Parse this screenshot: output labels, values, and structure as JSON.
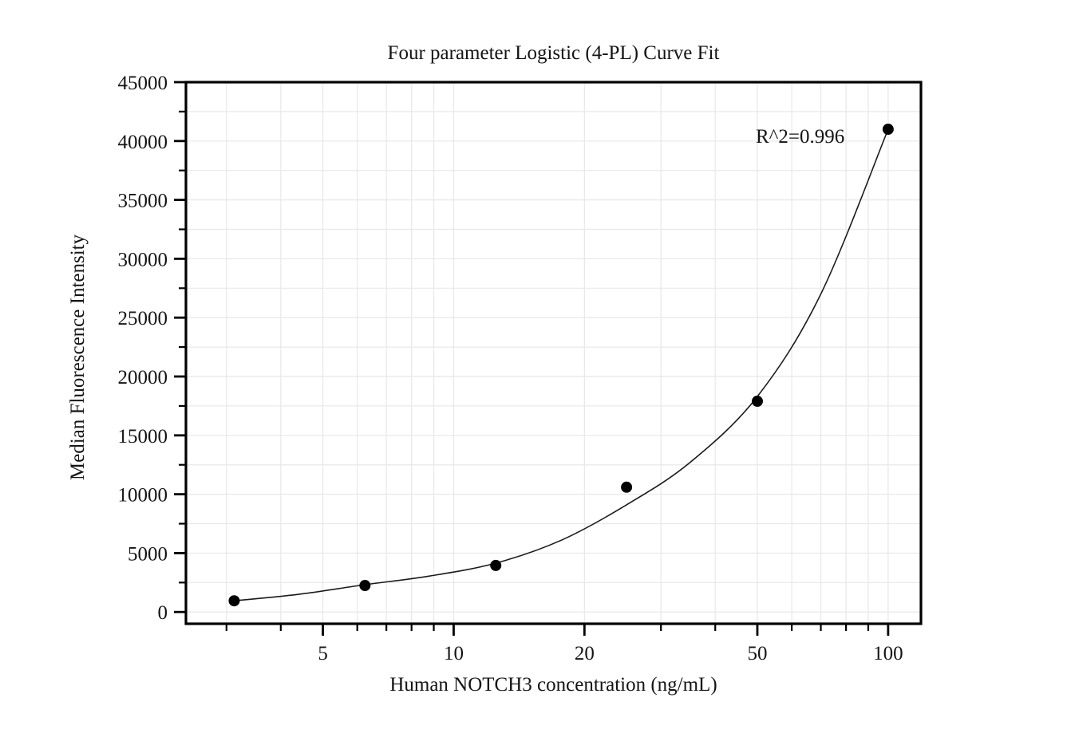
{
  "chart_data": {
    "type": "scatter",
    "title": "Four parameter Logistic (4-PL) Curve Fit",
    "xlabel": "Human NOTCH3 concentration (ng/mL)",
    "ylabel": "Median Fluorescence Intensity",
    "annotation": "R^2=0.996",
    "x_scale": "log",
    "y_scale": "linear",
    "x_range": [
      2.42,
      119
    ],
    "y_range": [
      -1000,
      45000
    ],
    "grid": true,
    "legend": "none",
    "points": {
      "x": [
        3.125,
        6.25,
        12.5,
        25,
        50,
        100
      ],
      "y": [
        950,
        2250,
        3950,
        10600,
        17900,
        41000
      ]
    },
    "fit_curve": {
      "x": [
        3.125,
        4.4,
        6.25,
        8.8,
        12.5,
        17.7,
        25,
        35,
        50,
        70,
        100
      ],
      "y": [
        950,
        1500,
        2320,
        3050,
        4150,
        6100,
        9100,
        12700,
        18300,
        27000,
        41000
      ]
    },
    "x_axis": {
      "major_ticks": [
        5,
        10,
        20,
        50,
        100
      ],
      "major_labels": [
        "5",
        "10",
        "20",
        "50",
        "100"
      ],
      "minor_ticks": [
        3,
        4,
        6,
        7,
        8,
        9,
        30,
        40,
        60,
        70,
        80,
        90
      ]
    },
    "y_axis": {
      "major_ticks": [
        0,
        5000,
        10000,
        15000,
        20000,
        25000,
        30000,
        35000,
        40000,
        45000
      ],
      "major_labels": [
        "0",
        "5000",
        "10000",
        "15000",
        "20000",
        "25000",
        "30000",
        "35000",
        "40000",
        "45000"
      ],
      "minor_ticks": [
        2500,
        7500,
        12500,
        17500,
        22500,
        27500,
        32500,
        37500,
        42500
      ]
    },
    "colors": {
      "background": "#ffffff",
      "axis": "#000000",
      "grid": "#e8e8e8",
      "text": "#141414",
      "point": "#000000",
      "curve": "#1a1a1a"
    }
  }
}
